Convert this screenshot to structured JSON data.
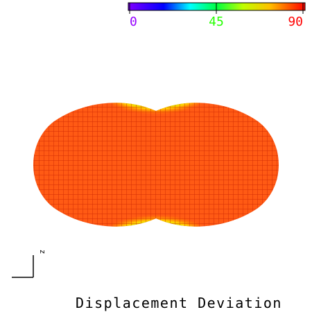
{
  "title": "Displacement Deviation",
  "colorbar": {
    "lim": [
      0,
      90
    ],
    "ticks": [
      0,
      45,
      90
    ]
  },
  "axis_label": "z"
}
